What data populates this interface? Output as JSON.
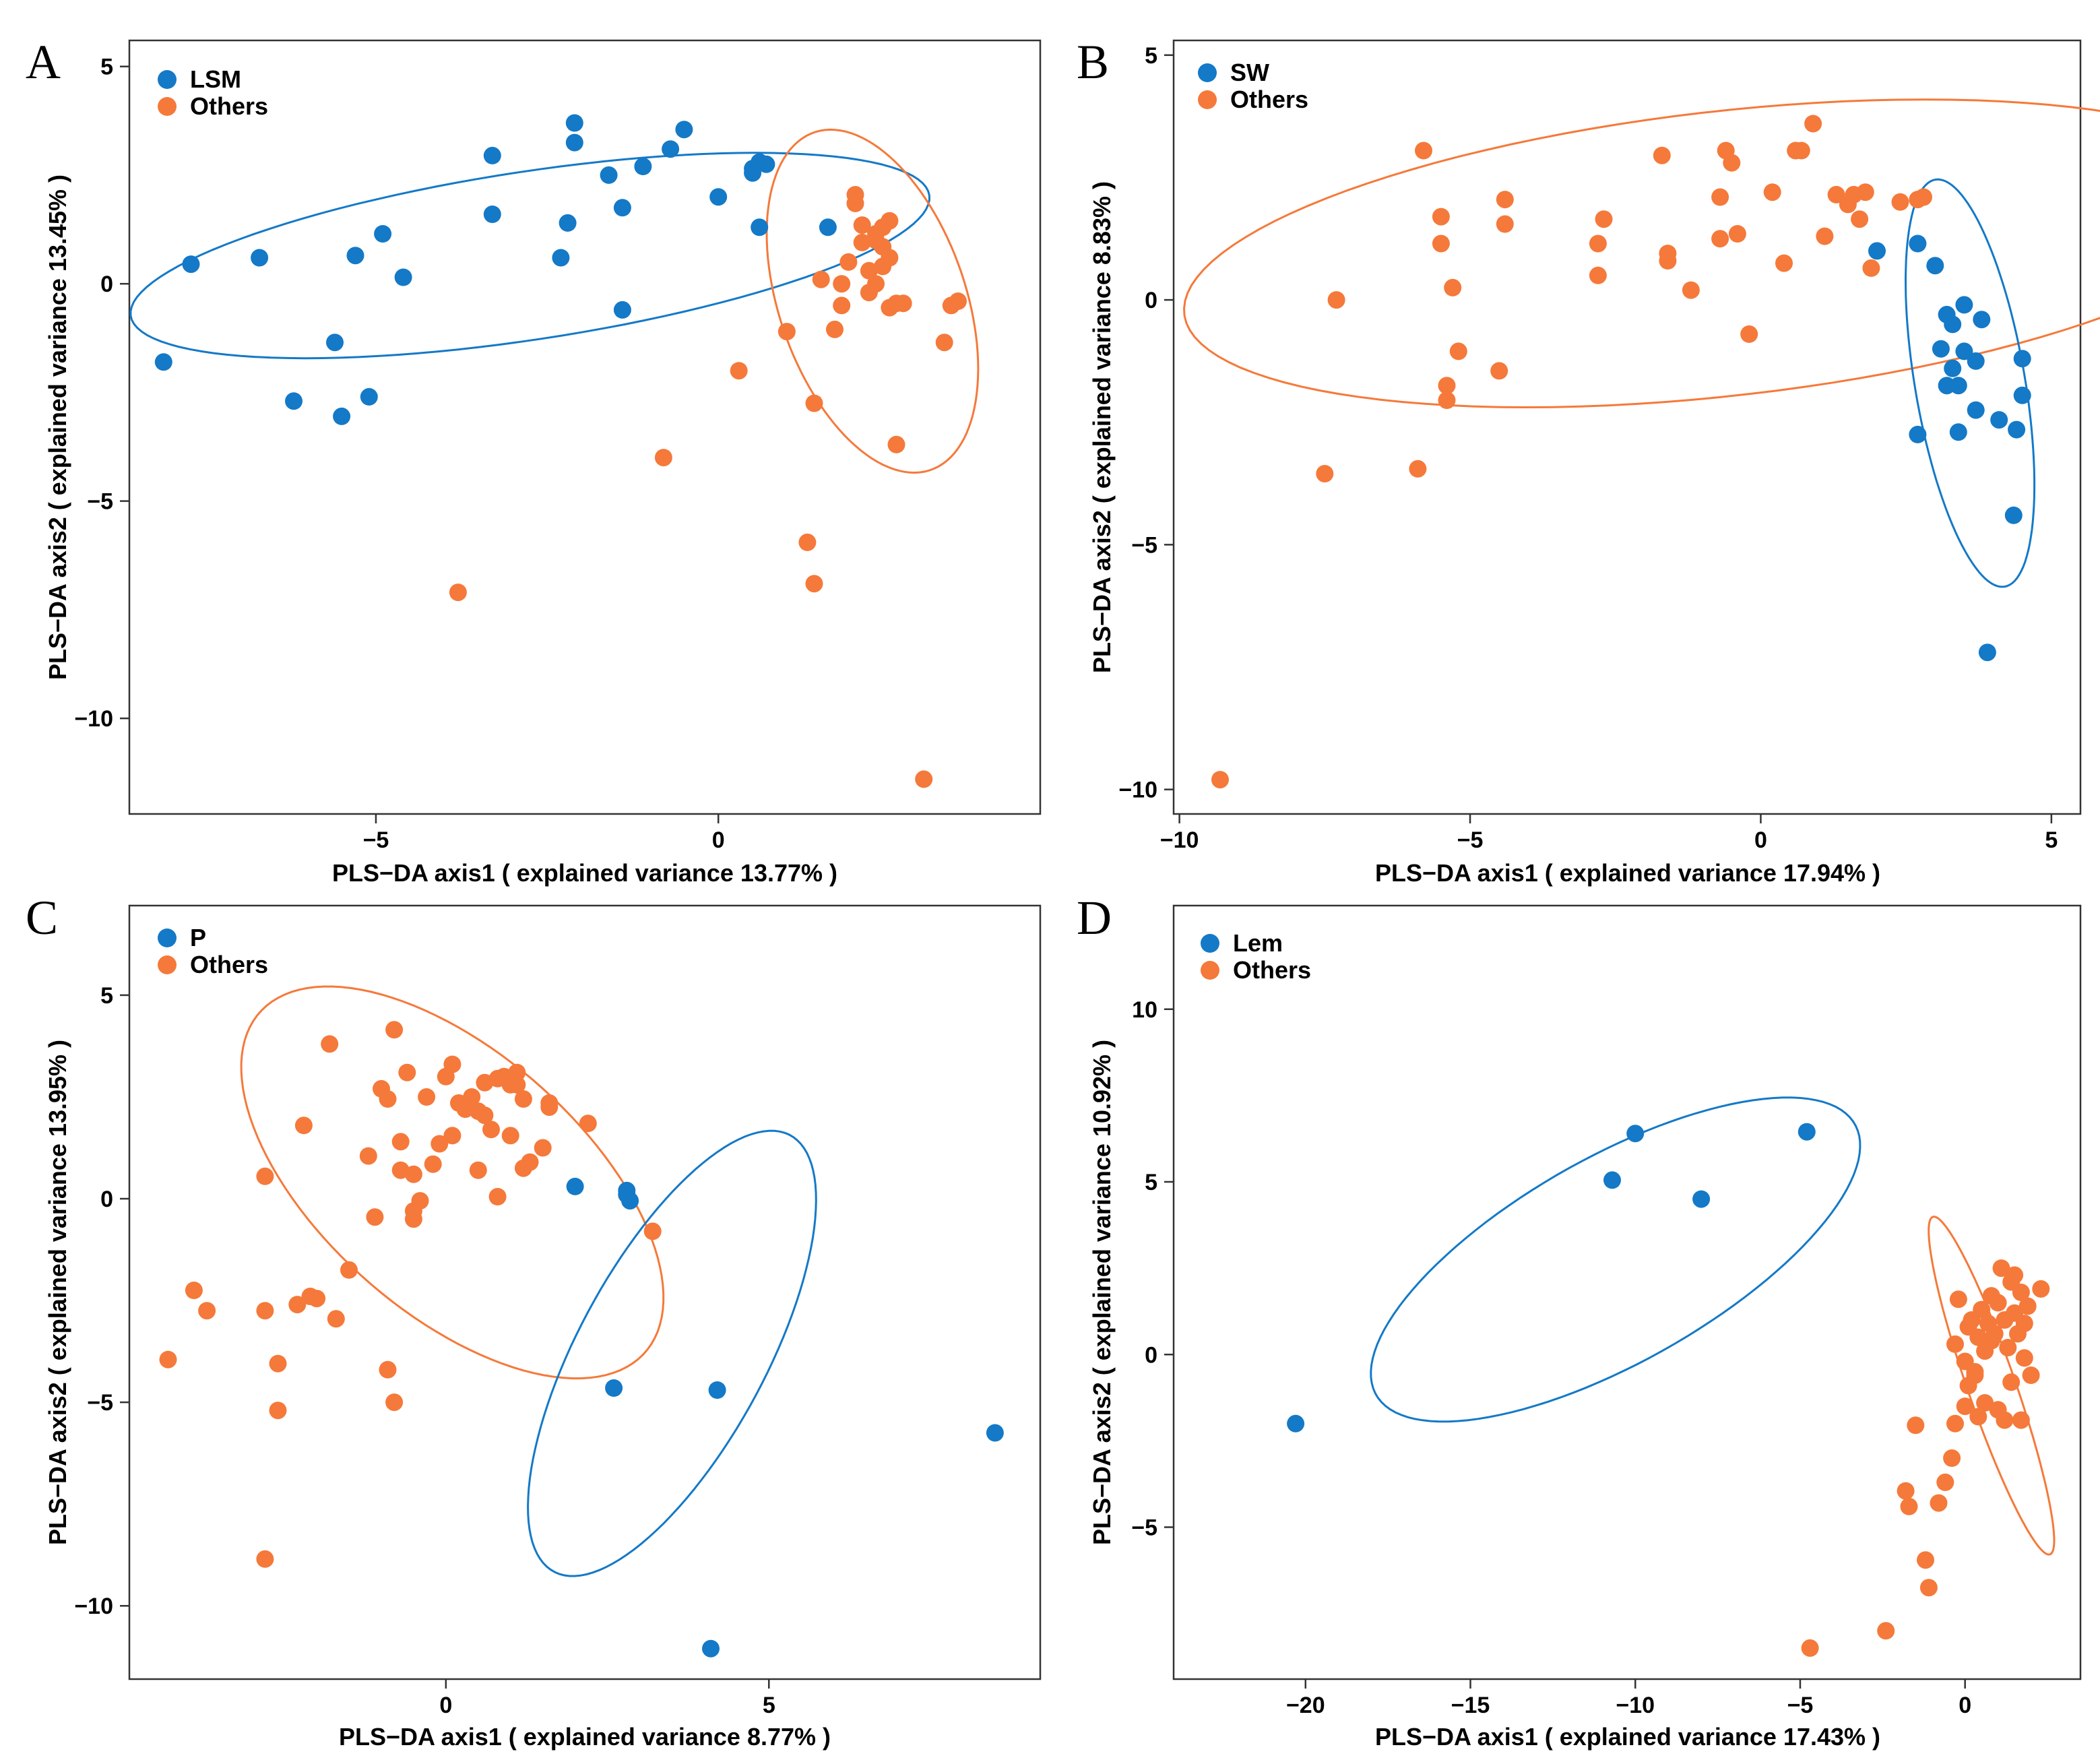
{
  "colors": {
    "group": "#1479c7",
    "others": "#f5793a"
  },
  "chart_data": [
    {
      "panel": "A",
      "type": "scatter",
      "xlabel": "PLS−DA axis1 ( explained variance 13.77% )",
      "ylabel": "PLS−DA axis2 ( explained variance 13.45% )",
      "xlim": [
        -8.6,
        4.7
      ],
      "ylim": [
        -12.2,
        5.6
      ],
      "xticks": [
        -5,
        0
      ],
      "xtick_labels": [
        "−5",
        "0"
      ],
      "yticks": [
        5,
        0,
        -5,
        -10
      ],
      "ytick_labels": [
        "5",
        "0",
        "−5",
        "−10"
      ],
      "legend": [
        "LSM",
        "Others"
      ],
      "series": [
        {
          "name": "LSM",
          "color": "#1479c7",
          "x": [
            -8.1,
            -7.7,
            -6.7,
            -6.2,
            -5.6,
            -5.5,
            -5.3,
            -5.1,
            -4.9,
            -4.6,
            -3.3,
            -3.3,
            -2.3,
            -2.2,
            -2.1,
            -2.1,
            -1.6,
            -1.4,
            -1.4,
            -1.1,
            -0.7,
            -0.5,
            0.0,
            0.5,
            0.5,
            0.6,
            0.7,
            0.6,
            1.6
          ],
          "y": [
            -1.8,
            0.45,
            0.6,
            -2.7,
            -1.35,
            -3.05,
            0.65,
            -2.6,
            1.15,
            0.15,
            2.95,
            1.6,
            0.6,
            1.4,
            3.25,
            3.7,
            2.5,
            1.75,
            -0.6,
            2.7,
            3.1,
            3.55,
            2.0,
            2.55,
            2.65,
            2.8,
            2.75,
            1.3,
            1.3
          ]
        },
        {
          "name": "Others",
          "color": "#f5793a",
          "x": [
            -3.8,
            -0.8,
            0.3,
            1.0,
            1.3,
            1.4,
            1.5,
            1.7,
            1.8,
            1.8,
            1.9,
            2.0,
            2.0,
            2.1,
            2.1,
            2.2,
            2.2,
            2.3,
            2.3,
            2.3,
            2.4,
            2.4,
            2.4,
            2.5,
            2.5,
            2.5,
            2.6,
            2.7,
            3.3,
            3.4,
            3.5,
            3.0,
            1.4,
            2.6
          ],
          "y": [
            -7.1,
            -4.0,
            -2.0,
            -1.1,
            -5.95,
            -2.75,
            0.1,
            -1.05,
            -0.5,
            0.0,
            0.5,
            1.85,
            2.05,
            0.95,
            1.35,
            0.3,
            -0.2,
            0.0,
            1.0,
            1.15,
            0.4,
            1.3,
            0.85,
            1.45,
            0.6,
            -0.55,
            -0.45,
            -0.45,
            -1.35,
            -0.5,
            -0.4,
            -11.4,
            -6.9,
            -3.7
          ]
        }
      ],
      "ellipses": [
        {
          "group": "LSM",
          "center": [
            -2.75,
            0.65
          ],
          "semi_axes": [
            6.0,
            1.9
          ],
          "angle_deg": 14.3
        },
        {
          "group": "Others",
          "center": [
            2.25,
            -0.4
          ],
          "semi_axes": [
            1.4,
            4.0
          ],
          "angle_deg": 10
        }
      ]
    },
    {
      "panel": "B",
      "type": "scatter",
      "xlabel": "PLS−DA axis1 ( explained variance 17.94% )",
      "ylabel": "PLS−DA axis2 ( explained variance 8.83% )",
      "xlim": [
        -10.1,
        5.5
      ],
      "ylim": [
        -10.5,
        5.3
      ],
      "xticks": [
        -10,
        -5,
        0,
        5
      ],
      "xtick_labels": [
        "−10",
        "−5",
        "0",
        "5"
      ],
      "yticks": [
        5,
        0,
        -5,
        -10
      ],
      "ytick_labels": [
        "5",
        "0",
        "−5",
        "−10"
      ],
      "legend": [
        "SW",
        "Others"
      ],
      "series": [
        {
          "name": "SW",
          "color": "#1479c7",
          "x": [
            2.0,
            2.7,
            3.0,
            3.2,
            3.3,
            3.5,
            3.8,
            4.5,
            3.1,
            3.3,
            3.5,
            3.7,
            3.2,
            3.4,
            4.5,
            2.7,
            3.4,
            4.1,
            3.7,
            4.4,
            3.9,
            4.35
          ],
          "y": [
            1.0,
            1.15,
            0.7,
            -0.3,
            -0.5,
            -0.1,
            -0.4,
            -1.2,
            -1.0,
            -1.4,
            -1.05,
            -1.25,
            -1.75,
            -1.75,
            -1.95,
            -2.75,
            -2.7,
            -2.45,
            -2.25,
            -2.65,
            -7.2,
            -4.4
          ]
        },
        {
          "name": "Others",
          "color": "#f5793a",
          "x": [
            -9.3,
            -7.5,
            -7.3,
            -5.9,
            -5.8,
            -5.5,
            -5.5,
            -5.4,
            -5.4,
            -5.3,
            -5.2,
            -4.5,
            -4.4,
            -4.4,
            -2.8,
            -2.8,
            -2.7,
            -1.7,
            -1.6,
            -1.6,
            -1.2,
            -0.7,
            -0.7,
            -0.6,
            -0.5,
            -0.4,
            -0.2,
            0.2,
            0.4,
            0.6,
            0.7,
            0.9,
            1.1,
            1.3,
            1.5,
            1.6,
            1.7,
            1.9,
            2.4,
            2.7,
            2.8,
            1.8
          ],
          "y": [
            -9.8,
            -3.55,
            0.0,
            -3.45,
            3.05,
            1.7,
            1.15,
            -1.75,
            -2.05,
            0.25,
            -1.05,
            -1.45,
            1.55,
            2.05,
            1.15,
            0.5,
            1.65,
            2.95,
            0.95,
            0.8,
            0.2,
            1.25,
            2.1,
            3.05,
            2.8,
            1.35,
            -0.7,
            2.2,
            0.75,
            3.05,
            3.05,
            3.6,
            1.3,
            2.15,
            1.95,
            2.15,
            1.65,
            0.65,
            2.0,
            2.05,
            2.1,
            2.2
          ]
        }
      ],
      "ellipses": [
        {
          "group": "Others",
          "center": [
            -0.6,
            0.95
          ],
          "semi_axes": [
            9.4,
            2.9
          ],
          "angle_deg": 7.8
        },
        {
          "group": "SW",
          "center": [
            3.6,
            -1.7
          ],
          "semi_axes": [
            0.95,
            4.2
          ],
          "angle_deg": 8
        }
      ]
    },
    {
      "panel": "C",
      "type": "scatter",
      "xlabel": "PLS−DA axis1 ( explained variance 8.77% )",
      "ylabel": "PLS−DA axis2 ( explained variance 13.95% )",
      "xlim": [
        -4.9,
        9.2
      ],
      "ylim": [
        -11.8,
        7.2
      ],
      "xticks": [
        0,
        5
      ],
      "xtick_labels": [
        "0",
        "5"
      ],
      "yticks": [
        5,
        0,
        -5,
        -10
      ],
      "ytick_labels": [
        "5",
        "0",
        "−5",
        "−10"
      ],
      "legend": [
        "P",
        "Others"
      ],
      "series": [
        {
          "name": "P",
          "color": "#1479c7",
          "x": [
            2.0,
            2.8,
            2.85,
            2.8,
            2.6,
            4.2,
            4.1,
            8.5
          ],
          "y": [
            0.3,
            0.2,
            -0.05,
            0.1,
            -4.65,
            -4.7,
            -11.05,
            -5.75
          ]
        },
        {
          "name": "Others",
          "color": "#f5793a",
          "x": [
            -4.3,
            -3.9,
            -3.7,
            -2.8,
            -2.8,
            -2.6,
            -2.3,
            -2.2,
            -2.1,
            -2.0,
            -1.8,
            -1.7,
            -1.5,
            -1.2,
            -1.1,
            -1.0,
            -0.9,
            -0.9,
            -0.8,
            -0.7,
            -0.7,
            -0.6,
            -0.5,
            -0.5,
            -0.4,
            -0.3,
            -0.2,
            -0.1,
            0.0,
            0.1,
            0.1,
            0.2,
            0.3,
            0.4,
            0.5,
            0.5,
            0.6,
            0.6,
            0.7,
            0.8,
            0.8,
            0.9,
            1.0,
            1.0,
            1.1,
            1.1,
            1.2,
            1.2,
            1.3,
            1.5,
            1.6,
            1.6,
            2.2,
            3.2,
            -2.6,
            -0.8,
            -0.5,
            -2.8
          ],
          "y": [
            -3.95,
            -2.25,
            -2.75,
            0.55,
            -2.75,
            -5.2,
            -2.6,
            1.8,
            -2.4,
            -2.45,
            3.8,
            -2.95,
            -1.75,
            1.05,
            -0.45,
            2.7,
            2.45,
            -4.2,
            4.15,
            0.7,
            1.4,
            3.1,
            0.6,
            -0.3,
            -0.05,
            2.5,
            0.85,
            1.35,
            3.0,
            3.3,
            1.55,
            2.35,
            2.2,
            2.5,
            0.7,
            2.15,
            2.85,
            2.05,
            1.7,
            2.95,
            0.05,
            3.0,
            2.8,
            1.55,
            3.1,
            2.8,
            0.75,
            2.45,
            0.9,
            1.25,
            2.35,
            2.25,
            1.85,
            -0.8,
            -4.05,
            -5.0,
            -0.5,
            -8.85
          ]
        }
      ],
      "ellipses": [
        {
          "group": "Others",
          "center": [
            0.1,
            0.4
          ],
          "semi_axes": [
            2.4,
            5.3
          ],
          "angle_deg": 28
        },
        {
          "group": "P",
          "center": [
            3.5,
            -3.8
          ],
          "semi_axes": [
            1.55,
            5.7
          ],
          "angle_deg": -17
        }
      ]
    },
    {
      "panel": "D",
      "type": "scatter",
      "xlabel": "PLS−DA axis1 ( explained variance 17.43% )",
      "ylabel": "PLS−DA axis2 ( explained variance 10.92% )",
      "xlim": [
        -24.0,
        3.5
      ],
      "ylim": [
        -9.4,
        13.0
      ],
      "xticks": [
        -20,
        -15,
        -10,
        -5,
        0
      ],
      "xtick_labels": [
        "−20",
        "−15",
        "−10",
        "−5",
        "0"
      ],
      "yticks": [
        10,
        5,
        0,
        -5
      ],
      "ytick_labels": [
        "10",
        "5",
        "0",
        "−5"
      ],
      "legend": [
        "Lem",
        "Others"
      ],
      "series": [
        {
          "name": "Lem",
          "color": "#1479c7",
          "x": [
            -20.3,
            -10.7,
            -10.0,
            -8.0,
            -4.8
          ],
          "y": [
            -2.0,
            5.05,
            6.4,
            4.5,
            6.45
          ]
        },
        {
          "name": "Others",
          "color": "#f5793a",
          "x": [
            -4.7,
            -2.4,
            -1.2,
            -1.1,
            -0.8,
            -0.6,
            -1.8,
            -1.7,
            -1.5,
            -0.4,
            -0.3,
            -0.3,
            -0.2,
            0.0,
            0.1,
            0.2,
            0.3,
            0.4,
            0.5,
            0.6,
            0.7,
            0.8,
            0.9,
            1.0,
            1.1,
            1.2,
            1.3,
            1.4,
            1.5,
            1.6,
            1.7,
            1.8,
            1.9,
            2.0,
            2.3,
            0.1,
            0.4,
            0.6,
            1.2,
            1.4,
            1.7,
            0.0,
            0.3,
            0.8,
            1.0,
            1.5,
            1.8
          ],
          "y": [
            -8.5,
            -8.0,
            -5.95,
            -6.75,
            -4.3,
            -3.7,
            -3.95,
            -4.4,
            -2.05,
            -3.0,
            -2.0,
            0.3,
            1.6,
            -1.5,
            0.8,
            1.0,
            -0.5,
            0.5,
            1.3,
            0.1,
            0.9,
            1.7,
            0.6,
            1.5,
            2.5,
            1.0,
            0.2,
            2.1,
            1.2,
            0.6,
            1.8,
            0.9,
            1.4,
            -0.6,
            1.9,
            -0.9,
            -1.8,
            -1.4,
            -1.9,
            -0.8,
            -1.9,
            -0.2,
            -0.6,
            0.4,
            -1.6,
            2.3,
            -0.1
          ]
        }
      ],
      "ellipses": [
        {
          "group": "Lem",
          "center": [
            -10.6,
            2.75
          ],
          "semi_axes": [
            8.25,
            3.0
          ],
          "angle_deg": 28
        },
        {
          "group": "Others",
          "center": [
            0.8,
            -0.9
          ],
          "semi_axes": [
            0.72,
            5.2
          ],
          "angle_deg": 20
        }
      ]
    }
  ]
}
